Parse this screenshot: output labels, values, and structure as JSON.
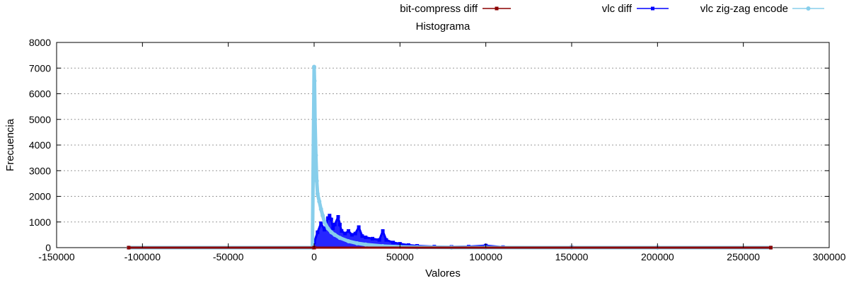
{
  "chart_data": {
    "type": "line",
    "title": "Histograma",
    "xlabel": "Valores",
    "ylabel": "Frecuencia",
    "xlim": [
      -150000,
      300000
    ],
    "ylim": [
      0,
      8000
    ],
    "xticks": [
      -150000,
      -100000,
      -50000,
      0,
      50000,
      100000,
      150000,
      200000,
      250000,
      300000
    ],
    "yticks": [
      0,
      1000,
      2000,
      3000,
      4000,
      5000,
      6000,
      7000,
      8000
    ],
    "grid": "horizontal dotted",
    "legend_position": "top",
    "series": [
      {
        "name": "bit-compress diff",
        "color": "#8b0000",
        "marker": "square",
        "x": [
          -108000,
          0,
          266000
        ],
        "y": [
          0,
          0,
          0
        ]
      },
      {
        "name": "vlc diff",
        "color": "#0000ff",
        "marker": "square",
        "x": [
          -108000,
          -1000,
          0,
          2000,
          4000,
          6000,
          8000,
          9000,
          10000,
          11000,
          12000,
          14000,
          15000,
          16000,
          18000,
          20000,
          22000,
          24000,
          26000,
          28000,
          30000,
          34000,
          38000,
          40000,
          42000,
          46000,
          50000,
          55000,
          60000,
          70000,
          80000,
          90000,
          100000,
          110000,
          150000,
          200000,
          266000
        ],
        "y": [
          0,
          0,
          200,
          600,
          950,
          700,
          1150,
          1250,
          1100,
          750,
          900,
          1200,
          900,
          650,
          550,
          650,
          500,
          550,
          800,
          450,
          400,
          350,
          300,
          650,
          300,
          200,
          150,
          100,
          70,
          40,
          30,
          40,
          80,
          20,
          10,
          5,
          0
        ]
      },
      {
        "name": "vlc zig-zag encode",
        "color": "#87ceeb",
        "marker": "circle",
        "x": [
          -108000,
          -1000,
          0,
          200,
          500,
          1000,
          1500,
          2000,
          3000,
          4000,
          5000,
          6000,
          8000,
          10000,
          12000,
          15000,
          20000,
          25000,
          30000,
          40000,
          50000,
          60000,
          80000,
          100000,
          150000,
          200000,
          266000
        ],
        "y": [
          0,
          0,
          7050,
          6500,
          5000,
          3600,
          2600,
          2100,
          1800,
          1500,
          1250,
          1000,
          750,
          600,
          500,
          380,
          250,
          170,
          120,
          60,
          30,
          15,
          5,
          2,
          0,
          0,
          0
        ]
      }
    ]
  }
}
